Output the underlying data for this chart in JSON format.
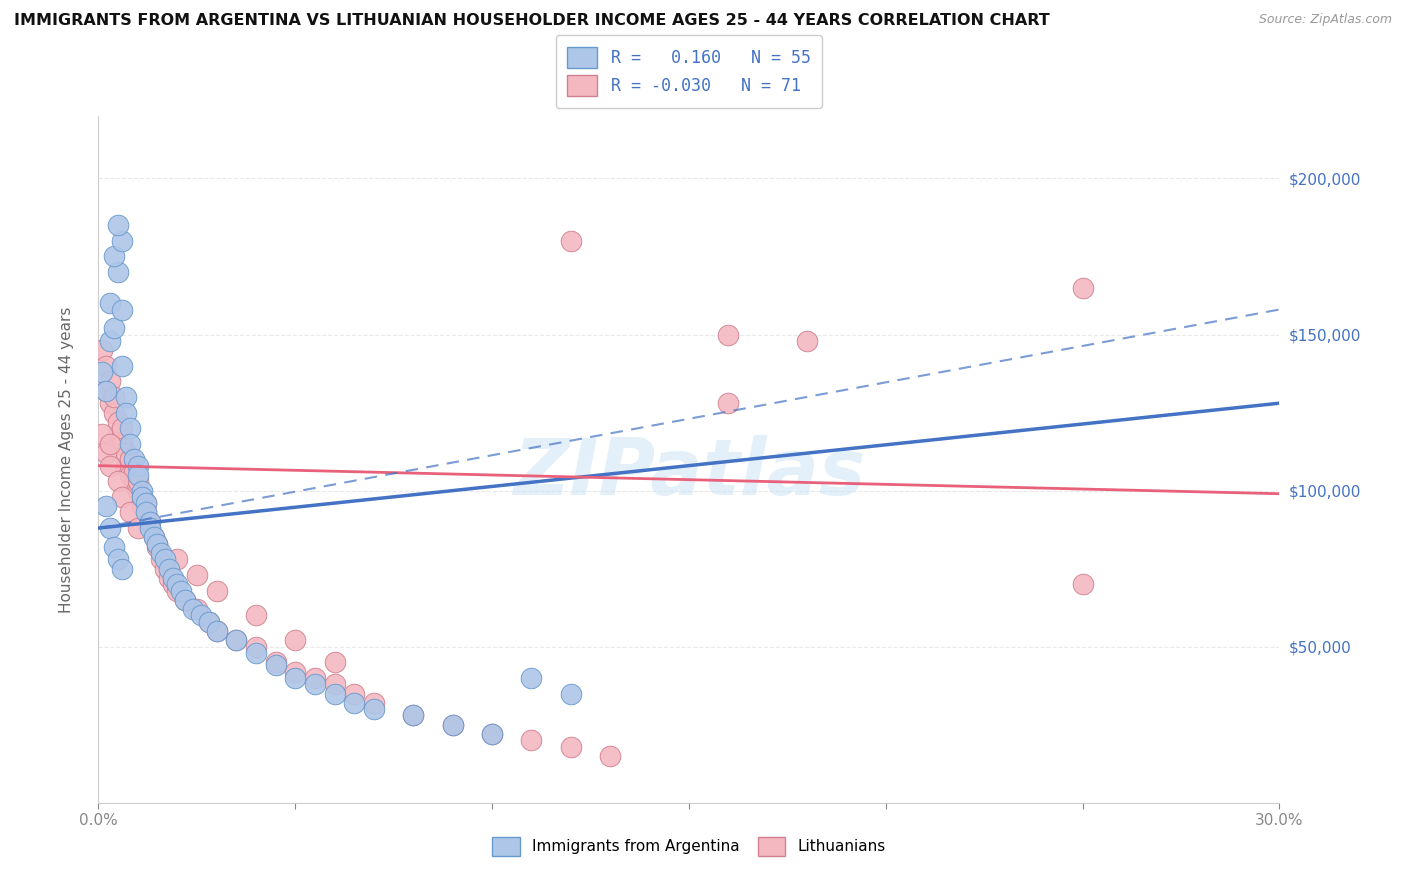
{
  "title": "IMMIGRANTS FROM ARGENTINA VS LITHUANIAN HOUSEHOLDER INCOME AGES 25 - 44 YEARS CORRELATION CHART",
  "source": "Source: ZipAtlas.com",
  "ylabel": "Householder Income Ages 25 - 44 years",
  "xlim": [
    0.0,
    0.3
  ],
  "ylim": [
    0,
    220000
  ],
  "yticks": [
    50000,
    100000,
    150000,
    200000
  ],
  "ytick_labels": [
    "$50,000",
    "$100,000",
    "$150,000",
    "$200,000"
  ],
  "color_blue": "#aec6e8",
  "color_pink": "#f4b8c1",
  "line_color_blue": "#4472c4",
  "line_color_pink": "#e8607a",
  "background_color": "#ffffff",
  "grid_color": "#e8e8e8",
  "blue_trend": [
    0.0,
    88000,
    0.3,
    128000
  ],
  "pink_trend": [
    0.0,
    108000,
    0.3,
    99000
  ],
  "blue_dash_trend": [
    0.0,
    88000,
    0.3,
    158000
  ],
  "blue_x": [
    0.001,
    0.002,
    0.003,
    0.004,
    0.003,
    0.005,
    0.004,
    0.006,
    0.005,
    0.006,
    0.007,
    0.006,
    0.007,
    0.008,
    0.008,
    0.009,
    0.01,
    0.01,
    0.011,
    0.011,
    0.012,
    0.012,
    0.013,
    0.013,
    0.014,
    0.015,
    0.016,
    0.017,
    0.018,
    0.019,
    0.02,
    0.021,
    0.022,
    0.024,
    0.026,
    0.028,
    0.03,
    0.035,
    0.04,
    0.045,
    0.05,
    0.055,
    0.06,
    0.065,
    0.07,
    0.08,
    0.09,
    0.1,
    0.11,
    0.12,
    0.002,
    0.003,
    0.004,
    0.005,
    0.006
  ],
  "blue_y": [
    138000,
    132000,
    148000,
    152000,
    160000,
    170000,
    175000,
    180000,
    185000,
    158000,
    130000,
    140000,
    125000,
    120000,
    115000,
    110000,
    108000,
    105000,
    100000,
    98000,
    96000,
    93000,
    90000,
    88000,
    85000,
    83000,
    80000,
    78000,
    75000,
    72000,
    70000,
    68000,
    65000,
    62000,
    60000,
    58000,
    55000,
    52000,
    48000,
    44000,
    40000,
    38000,
    35000,
    32000,
    30000,
    28000,
    25000,
    22000,
    40000,
    35000,
    95000,
    88000,
    82000,
    78000,
    75000
  ],
  "pink_x": [
    0.001,
    0.002,
    0.002,
    0.003,
    0.003,
    0.004,
    0.004,
    0.005,
    0.005,
    0.006,
    0.006,
    0.007,
    0.007,
    0.008,
    0.008,
    0.009,
    0.009,
    0.01,
    0.01,
    0.011,
    0.011,
    0.012,
    0.012,
    0.013,
    0.013,
    0.014,
    0.015,
    0.016,
    0.017,
    0.018,
    0.019,
    0.02,
    0.022,
    0.025,
    0.028,
    0.03,
    0.035,
    0.04,
    0.045,
    0.05,
    0.055,
    0.06,
    0.065,
    0.07,
    0.08,
    0.09,
    0.1,
    0.11,
    0.12,
    0.13,
    0.001,
    0.002,
    0.003,
    0.003,
    0.005,
    0.006,
    0.008,
    0.01,
    0.015,
    0.02,
    0.025,
    0.03,
    0.04,
    0.05,
    0.06,
    0.12,
    0.16,
    0.18,
    0.25,
    0.25,
    0.16
  ],
  "pink_y": [
    145000,
    140000,
    132000,
    128000,
    135000,
    125000,
    130000,
    118000,
    122000,
    115000,
    120000,
    108000,
    112000,
    105000,
    110000,
    102000,
    106000,
    100000,
    103000,
    98000,
    95000,
    93000,
    96000,
    90000,
    88000,
    85000,
    82000,
    78000,
    75000,
    72000,
    70000,
    68000,
    65000,
    62000,
    58000,
    55000,
    52000,
    50000,
    45000,
    42000,
    40000,
    38000,
    35000,
    32000,
    28000,
    25000,
    22000,
    20000,
    18000,
    15000,
    118000,
    112000,
    108000,
    115000,
    103000,
    98000,
    93000,
    88000,
    83000,
    78000,
    73000,
    68000,
    60000,
    52000,
    45000,
    180000,
    150000,
    148000,
    165000,
    70000,
    128000
  ]
}
